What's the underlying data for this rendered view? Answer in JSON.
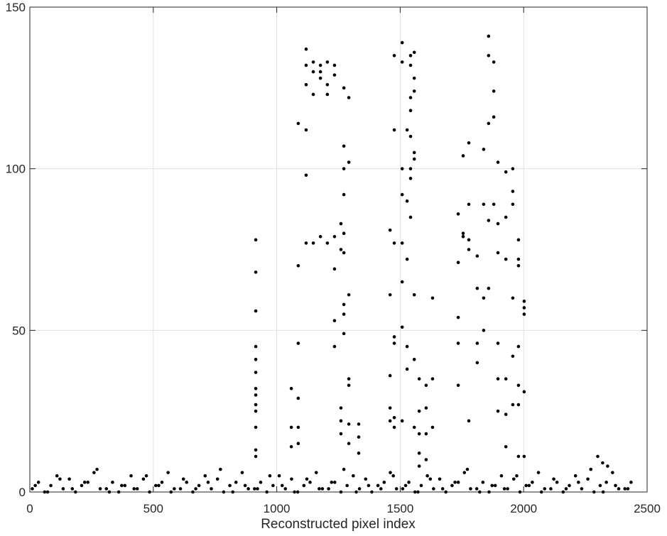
{
  "chart_data": {
    "type": "scatter",
    "x_label": "Reconstructed pixel index",
    "color": "#000000",
    "grid": true,
    "xlim": [
      0,
      2500
    ],
    "xticks": [
      0,
      500,
      1000,
      1500,
      2000,
      2500
    ],
    "ylim": [
      0,
      150
    ],
    "yticks": [
      0,
      50,
      100,
      150
    ],
    "x": [
      10,
      35,
      60,
      85,
      110,
      135,
      160,
      185,
      210,
      235,
      260,
      285,
      310,
      335,
      360,
      385,
      410,
      435,
      460,
      485,
      510,
      535,
      560,
      585,
      610,
      635,
      660,
      685,
      710,
      735,
      760,
      785,
      810,
      835,
      860,
      885,
      910,
      935,
      960,
      985,
      1010,
      1035,
      1060,
      1085,
      1110,
      1135,
      1160,
      1185,
      1210,
      1235,
      1260,
      1285,
      1310,
      1335,
      1360,
      1385,
      1410,
      1435,
      1460,
      1485,
      1510,
      1535,
      1560,
      1585,
      1610,
      1635,
      1660,
      1685,
      1710,
      1735,
      1760,
      1785,
      1810,
      1835,
      1860,
      1885,
      1910,
      1935,
      1960,
      1985,
      2010,
      2035,
      2060,
      2085,
      2110,
      2135,
      2160,
      2185,
      2210,
      2235,
      2260,
      2285,
      2310,
      2335,
      2360,
      2385,
      2410,
      2435,
      22,
      72,
      122,
      172,
      222,
      272,
      322,
      372,
      422,
      472,
      522,
      572,
      622,
      672,
      722,
      772,
      822,
      872,
      922,
      972,
      1022,
      1072,
      1122,
      1172,
      1222,
      1272,
      1322,
      1372,
      1422,
      1472,
      1522,
      1572,
      1622,
      1672,
      1722,
      1772,
      1822,
      1872,
      1922,
      1972,
      2022,
      2072,
      2122,
      2172,
      2222,
      2272,
      2322,
      2372,
      2422,
      915,
      915,
      915,
      915,
      915,
      915,
      915,
      915,
      915,
      915,
      915,
      915,
      915,
      1059,
      1059,
      1059,
      1087,
      1087,
      1087,
      1087,
      1087,
      1087,
      1119,
      1119,
      1119,
      1119,
      1119,
      1119,
      1148,
      1148,
      1148,
      1148,
      1177,
      1177,
      1177,
      1177,
      1205,
      1205,
      1205,
      1205,
      1234,
      1234,
      1234,
      1234,
      1234,
      1234,
      1260,
      1260,
      1260,
      1260,
      1260,
      1272,
      1272,
      1272,
      1272,
      1272,
      1272,
      1272,
      1272,
      1272,
      1292,
      1292,
      1292,
      1292,
      1292,
      1292,
      1292,
      1332,
      1332,
      1332,
      1459,
      1459,
      1459,
      1459,
      1459,
      1476,
      1476,
      1476,
      1476,
      1476,
      1476,
      1476,
      1508,
      1508,
      1508,
      1508,
      1508,
      1508,
      1508,
      1508,
      1528,
      1528,
      1528,
      1528,
      1528,
      1542,
      1542,
      1542,
      1542,
      1542,
      1542,
      1542,
      1542,
      1557,
      1557,
      1557,
      1557,
      1557,
      1557,
      1557,
      1557,
      1577,
      1577,
      1577,
      1577,
      1577,
      1605,
      1605,
      1605,
      1605,
      1631,
      1631,
      1631,
      1735,
      1735,
      1735,
      1735,
      1735,
      1755,
      1755,
      1755,
      1778,
      1778,
      1778,
      1778,
      1778,
      1812,
      1812,
      1812,
      1812,
      1838,
      1838,
      1838,
      1838,
      1858,
      1858,
      1858,
      1858,
      1858,
      1879,
      1879,
      1879,
      1879,
      1896,
      1896,
      1896,
      1896,
      1896,
      1896,
      1928,
      1928,
      1928,
      1928,
      1928,
      1928,
      1956,
      1956,
      1956,
      1956,
      1956,
      1956,
      1979,
      1979,
      1979,
      1979,
      1979,
      1979,
      1979,
      2002,
      2002,
      2002,
      2002,
      2002,
      2300,
      2320,
      2340
    ],
    "values": [
      1,
      3,
      0,
      2,
      5,
      1,
      4,
      0,
      2,
      3,
      6,
      1,
      1,
      3,
      0,
      2,
      5,
      1,
      4,
      0,
      2,
      3,
      6,
      1,
      1,
      3,
      0,
      2,
      5,
      1,
      4,
      0,
      2,
      3,
      6,
      1,
      1,
      3,
      0,
      2,
      5,
      1,
      4,
      0,
      2,
      3,
      6,
      1,
      1,
      3,
      0,
      2,
      5,
      1,
      4,
      0,
      2,
      3,
      6,
      1,
      1,
      3,
      0,
      2,
      5,
      1,
      4,
      0,
      2,
      3,
      6,
      1,
      1,
      3,
      0,
      2,
      5,
      1,
      4,
      0,
      2,
      3,
      6,
      1,
      1,
      3,
      0,
      2,
      5,
      1,
      4,
      0,
      2,
      3,
      6,
      1,
      1,
      3,
      2,
      0,
      4,
      1,
      3,
      7,
      0,
      2,
      1,
      5,
      2,
      0,
      4,
      1,
      3,
      7,
      0,
      2,
      1,
      5,
      2,
      0,
      4,
      1,
      3,
      7,
      0,
      2,
      1,
      5,
      2,
      0,
      4,
      1,
      3,
      7,
      0,
      2,
      1,
      5,
      2,
      0,
      4,
      1,
      3,
      7,
      0,
      2,
      1,
      78,
      68,
      56,
      45,
      41,
      37,
      32,
      30,
      27,
      25,
      20,
      13,
      11,
      32,
      20,
      14,
      114,
      70,
      46,
      29,
      20,
      15,
      137,
      132,
      126,
      112,
      98,
      77,
      133,
      130,
      123,
      77,
      132,
      130,
      128,
      79,
      133,
      126,
      123,
      77,
      132,
      129,
      79,
      69,
      53,
      45,
      83,
      75,
      26,
      22,
      18,
      125,
      107,
      100,
      92,
      80,
      74,
      58,
      55,
      49,
      122,
      102,
      61,
      35,
      33,
      21,
      15,
      21,
      17,
      12,
      81,
      61,
      36,
      26,
      22,
      135,
      112,
      77,
      48,
      46,
      23,
      20,
      139,
      133,
      100,
      92,
      77,
      65,
      51,
      22,
      112,
      90,
      72,
      45,
      38,
      135,
      132,
      122,
      118,
      110,
      100,
      97,
      85,
      136,
      128,
      124,
      105,
      103,
      61,
      41,
      20,
      35,
      25,
      18,
      12,
      8,
      33,
      26,
      18,
      10,
      60,
      35,
      20,
      86,
      71,
      54,
      46,
      33,
      104,
      80,
      79,
      108,
      89,
      78,
      75,
      22,
      73,
      63,
      46,
      40,
      106,
      89,
      60,
      50,
      141,
      135,
      114,
      84,
      63,
      133,
      124,
      116,
      89,
      102,
      83,
      74,
      46,
      35,
      25,
      99,
      85,
      72,
      35,
      24,
      14,
      100,
      93,
      89,
      60,
      42,
      27,
      78,
      72,
      70,
      45,
      33,
      27,
      11,
      59,
      57,
      55,
      31,
      11,
      11,
      9,
      8
    ]
  }
}
